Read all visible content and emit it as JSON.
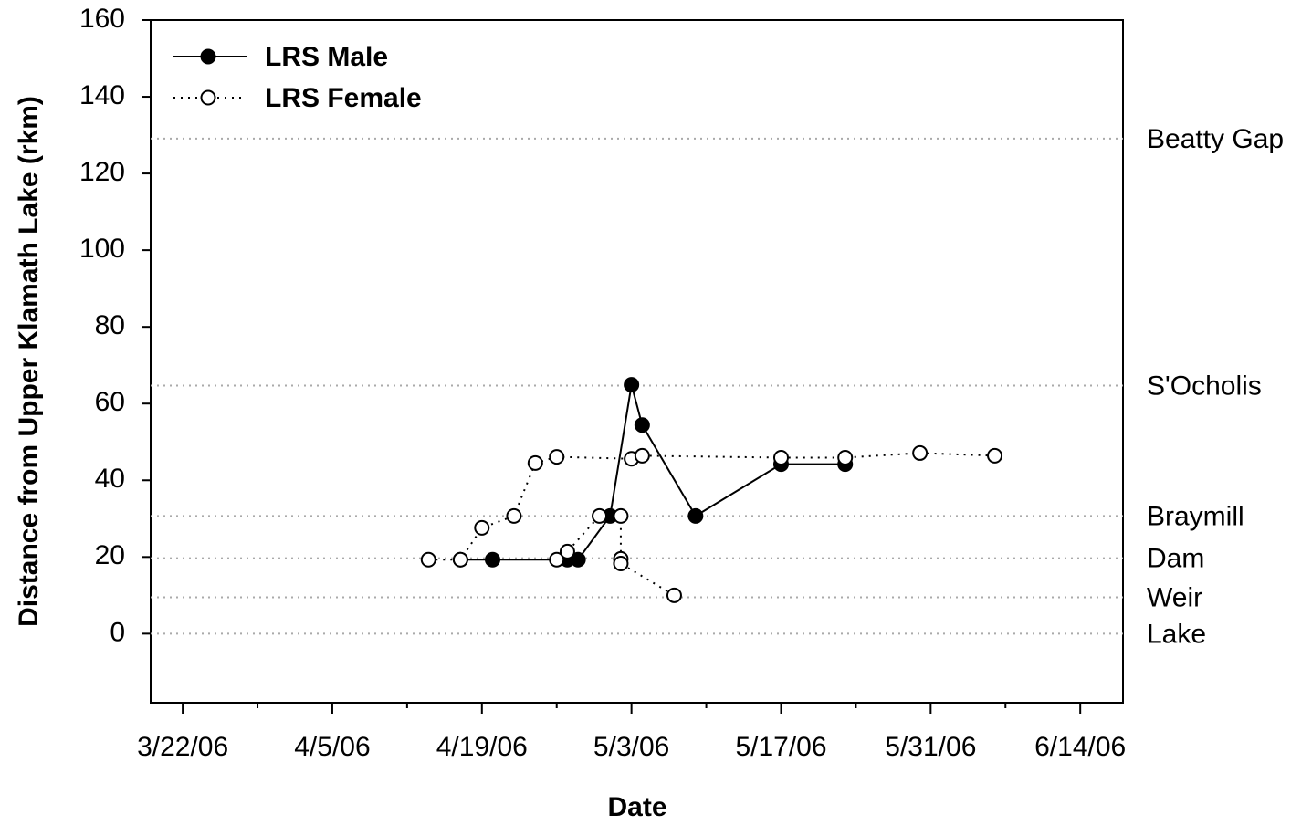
{
  "chart_data": {
    "type": "line",
    "x_label": "Date",
    "y_label": "Distance from Upper Klamath Lake (rkm)",
    "xlim": [
      "3/19/06",
      "6/18/06"
    ],
    "xticks": [
      "3/22/06",
      "4/5/06",
      "4/19/06",
      "5/3/06",
      "5/17/06",
      "5/31/06",
      "6/14/06"
    ],
    "ylim": [
      -18,
      160
    ],
    "yticks": [
      0,
      20,
      40,
      60,
      80,
      100,
      120,
      140,
      160
    ],
    "legend": "top-left",
    "reference_lines": [
      {
        "label": "Beatty Gap",
        "value": 129.1
      },
      {
        "label": "S'Ocholis",
        "value": 64.7
      },
      {
        "label": "Braymill",
        "value": 30.7
      },
      {
        "label": "Dam",
        "value": 19.7
      },
      {
        "label": "Weir",
        "value": 9.5
      },
      {
        "label": "Lake",
        "value": 0
      }
    ],
    "series": [
      {
        "name": "LRS Male",
        "color": "#000000",
        "marker": "filled",
        "line": "solid",
        "x": [
          "4/17/06",
          "4/20/06",
          "4/27/06",
          "4/28/06",
          "5/1/06",
          "5/3/06",
          "5/4/06",
          "5/9/06",
          "5/17/06",
          "5/23/06"
        ],
        "values": [
          19.3,
          19.3,
          19.3,
          19.3,
          30.7,
          64.9,
          54.4,
          30.7,
          44.2,
          44.2
        ]
      },
      {
        "name": "LRS Female",
        "color": "#000000",
        "marker": "open",
        "line": "dotted",
        "x": [
          "4/14/06",
          "4/17/06",
          "4/19/06",
          "4/22/06",
          "4/24/06",
          "4/26/06",
          "5/3/06",
          "5/4/06",
          "5/17/06",
          "5/23/06",
          "5/30/06",
          "6/6/06",
          null,
          "4/26/06",
          "4/27/06",
          "4/30/06",
          "5/2/06",
          "5/2/06",
          "5/2/06",
          "5/7/06"
        ],
        "values": [
          19.3,
          19.3,
          27.6,
          30.7,
          44.5,
          46.1,
          45.6,
          46.4,
          45.9,
          45.9,
          47.1,
          46.4,
          null,
          19.3,
          21.4,
          30.7,
          30.7,
          19.5,
          18.3,
          10.0
        ]
      }
    ]
  }
}
